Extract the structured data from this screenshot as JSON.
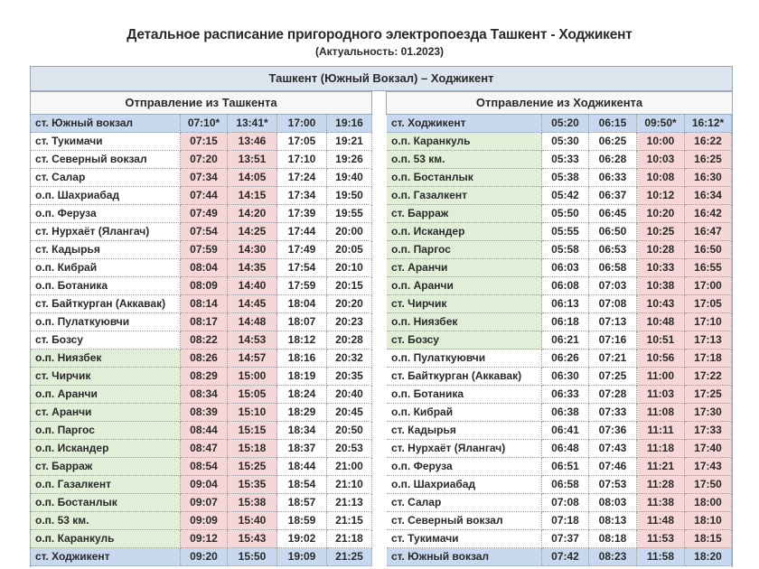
{
  "header": {
    "title": "Детальное расписание пригородного электропоезда Ташкент - Ходжикент",
    "subtitle": "(Актуальность: 01.2023)"
  },
  "table": {
    "route": "Ташкент (Южный Вокзал) – Ходжикент",
    "left": {
      "heading": "Отправление из Ташкента",
      "rows": [
        [
          "ст. Южный вокзал",
          "07:10*",
          "13:41*",
          "17:00",
          "19:16"
        ],
        [
          "ст. Тукимачи",
          "07:15",
          "13:46",
          "17:05",
          "19:21"
        ],
        [
          "ст. Северный вокзал",
          "07:20",
          "13:51",
          "17:10",
          "19:26"
        ],
        [
          "ст. Салар",
          "07:34",
          "14:05",
          "17:24",
          "19:40"
        ],
        [
          "о.п. Шахриабад",
          "07:44",
          "14:15",
          "17:34",
          "19:50"
        ],
        [
          "о.п. Феруза",
          "07:49",
          "14:20",
          "17:39",
          "19:55"
        ],
        [
          "ст. Нурхаёт (Ялангач)",
          "07:54",
          "14:25",
          "17:44",
          "20:00"
        ],
        [
          "ст. Кадырья",
          "07:59",
          "14:30",
          "17:49",
          "20:05"
        ],
        [
          "о.п. Кибрай",
          "08:04",
          "14:35",
          "17:54",
          "20:10"
        ],
        [
          "о.п. Ботаника",
          "08:09",
          "14:40",
          "17:59",
          "20:15"
        ],
        [
          "ст. Байткурган (Аккавак)",
          "08:14",
          "14:45",
          "18:04",
          "20:20"
        ],
        [
          "о.п. Пулаткуювчи",
          "08:17",
          "14:48",
          "18:07",
          "20:23"
        ],
        [
          "ст.  Бозсу",
          "08:22",
          "14:53",
          "18:12",
          "20:28"
        ],
        [
          "о.п. Ниязбек",
          "08:26",
          "14:57",
          "18:16",
          "20:32"
        ],
        [
          "ст. Чирчик",
          "08:29",
          "15:00",
          "18:19",
          "20:35"
        ],
        [
          "о.п. Аранчи",
          "08:34",
          "15:05",
          "18:24",
          "20:40"
        ],
        [
          "ст. Аранчи",
          "08:39",
          "15:10",
          "18:29",
          "20:45"
        ],
        [
          "о.п. Паргос",
          "08:44",
          "15:15",
          "18:34",
          "20:50"
        ],
        [
          "о.п. Искандер",
          "08:47",
          "15:18",
          "18:37",
          "20:53"
        ],
        [
          "ст. Барраж",
          "08:54",
          "15:25",
          "18:44",
          "21:00"
        ],
        [
          "о.п. Газалкент",
          "09:04",
          "15:35",
          "18:54",
          "21:10"
        ],
        [
          "о.п. Бостанлык",
          "09:07",
          "15:38",
          "18:57",
          "21:13"
        ],
        [
          "о.п. 53 км.",
          "09:09",
          "15:40",
          "18:59",
          "21:15"
        ],
        [
          "о.п. Каранкуль",
          "09:12",
          "15:43",
          "19:02",
          "21:18"
        ],
        [
          "ст. Ходжикент",
          "09:20",
          "15:50",
          "19:09",
          "21:25"
        ]
      ]
    },
    "right": {
      "heading": "Отправление из Ходжикента",
      "rows": [
        [
          "ст. Ходжикент",
          "05:20",
          "06:15",
          "09:50*",
          "16:12*"
        ],
        [
          "о.п. Каранкуль",
          "05:30",
          "06:25",
          "10:00",
          "16:22"
        ],
        [
          "о.п. 53 км.",
          "05:33",
          "06:28",
          "10:03",
          "16:25"
        ],
        [
          "о.п. Бостанлык",
          "05:38",
          "06:33",
          "10:08",
          "16:30"
        ],
        [
          "о.п. Газалкент",
          "05:42",
          "06:37",
          "10:12",
          "16:34"
        ],
        [
          "ст. Барраж",
          "05:50",
          "06:45",
          "10:20",
          "16:42"
        ],
        [
          "о.п. Искандер",
          "05:55",
          "06:50",
          "10:25",
          "16:47"
        ],
        [
          "о.п. Паргос",
          "05:58",
          "06:53",
          "10:28",
          "16:50"
        ],
        [
          "ст. Аранчи",
          "06:03",
          "06:58",
          "10:33",
          "16:55"
        ],
        [
          "о.п. Аранчи",
          "06:08",
          "07:03",
          "10:38",
          "17:00"
        ],
        [
          "ст. Чирчик",
          "06:13",
          "07:08",
          "10:43",
          "17:05"
        ],
        [
          "о.п. Ниязбек",
          "06:18",
          "07:13",
          "10:48",
          "17:10"
        ],
        [
          "ст. Бозсу",
          "06:21",
          "07:16",
          "10:51",
          "17:13"
        ],
        [
          "о.п. Пулаткуювчи",
          "06:26",
          "07:21",
          "10:56",
          "17:18"
        ],
        [
          "ст. Байткурган (Аккавак)",
          "06:30",
          "07:25",
          "11:00",
          "17:22"
        ],
        [
          "о.п. Ботаника",
          "06:33",
          "07:28",
          "11:03",
          "17:25"
        ],
        [
          "о.п. Кибрай",
          "06:38",
          "07:33",
          "11:08",
          "17:30"
        ],
        [
          "ст. Кадырья",
          "06:41",
          "07:36",
          "11:11",
          "17:33"
        ],
        [
          "ст. Нурхаёт (Ялангач)",
          "06:48",
          "07:43",
          "11:18",
          "17:40"
        ],
        [
          "о.п. Феруза",
          "06:51",
          "07:46",
          "11:21",
          "17:43"
        ],
        [
          "о.п. Шахриабад",
          "06:58",
          "07:53",
          "11:28",
          "17:50"
        ],
        [
          "ст. Салар",
          "07:08",
          "08:03",
          "11:38",
          "18:00"
        ],
        [
          "ст. Северный вокзал",
          "07:18",
          "08:13",
          "11:48",
          "18:10"
        ],
        [
          "ст. Тукимачи",
          "07:37",
          "08:18",
          "11:53",
          "18:15"
        ],
        [
          "ст. Южный вокзал",
          "07:42",
          "08:23",
          "11:58",
          "18:20"
        ]
      ]
    }
  }
}
